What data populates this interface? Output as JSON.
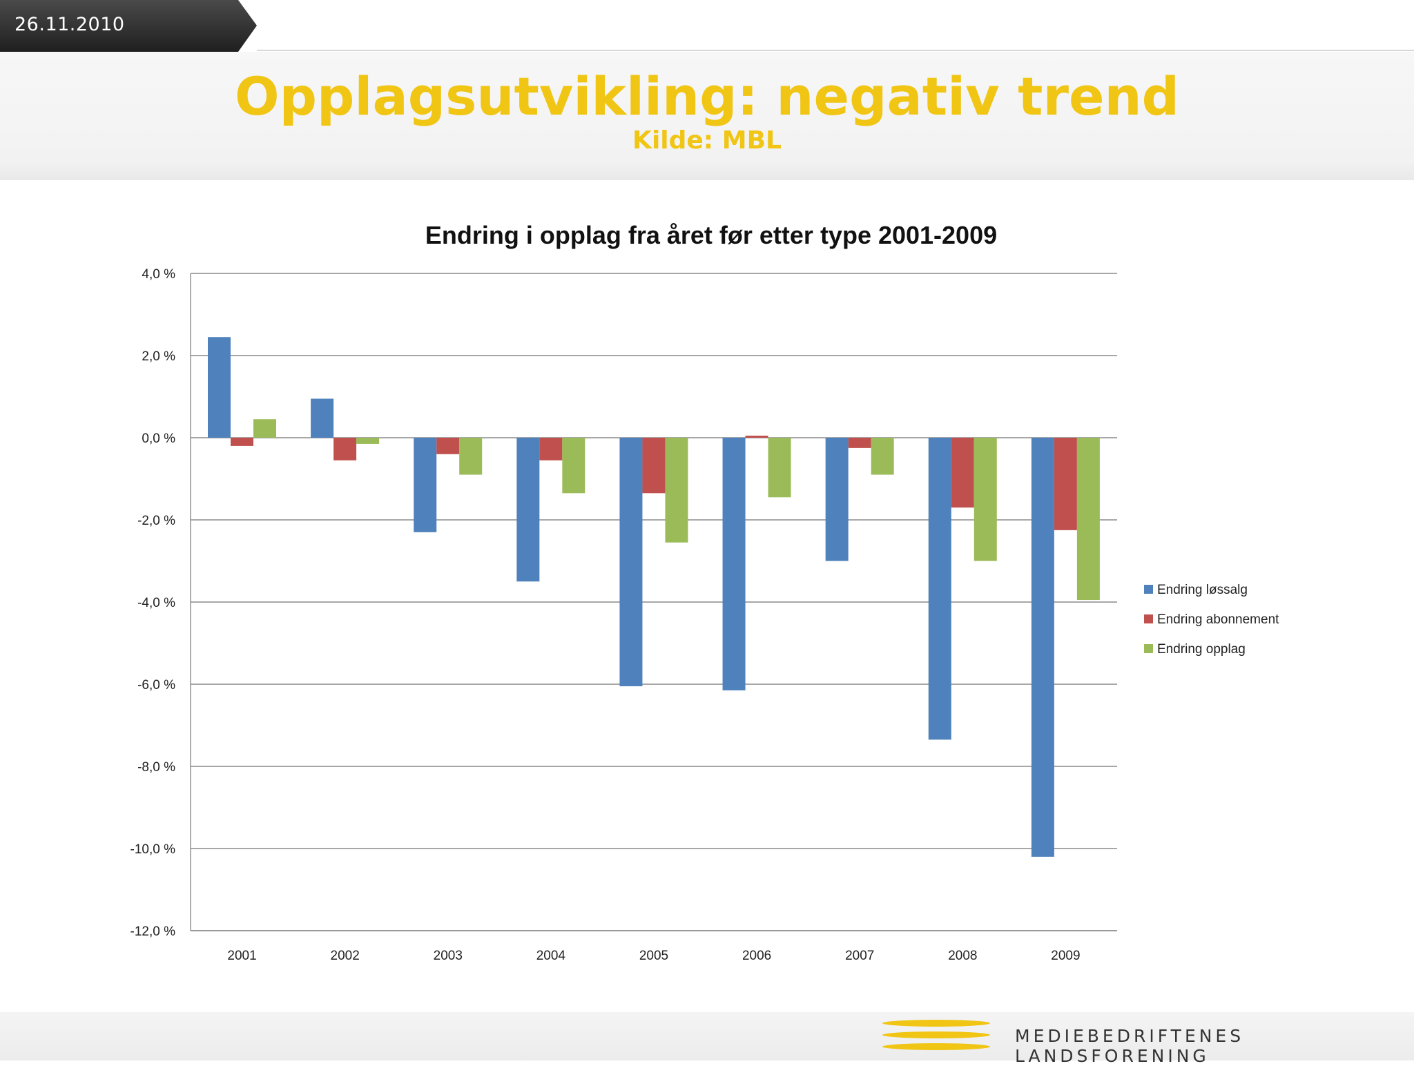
{
  "header": {
    "date": "26.11.2010",
    "title": "Opplagsutvikling: negativ trend",
    "subtitle": "Kilde: MBL"
  },
  "footer": {
    "org_name": "MEDIEBEDRIFTENES LANDSFORENING"
  },
  "chart_data": {
    "type": "bar",
    "title": "Endring i opplag fra året før etter type 2001-2009",
    "categories": [
      "2001",
      "2002",
      "2003",
      "2004",
      "2005",
      "2006",
      "2007",
      "2008",
      "2009"
    ],
    "series": [
      {
        "name": "Endring løssalg",
        "color": "#4f81bd",
        "values": [
          2.45,
          0.95,
          -2.3,
          -3.5,
          -6.05,
          -6.15,
          -3.0,
          -7.35,
          -10.2
        ]
      },
      {
        "name": "Endring abonnement",
        "color": "#c0504d",
        "values": [
          -0.2,
          -0.55,
          -0.4,
          -0.55,
          -1.35,
          0.05,
          -0.25,
          -1.7,
          -2.25
        ]
      },
      {
        "name": "Endring opplag",
        "color": "#9bbb59",
        "values": [
          0.45,
          -0.15,
          -0.9,
          -1.35,
          -2.55,
          -1.45,
          -0.9,
          -3.0,
          -3.95
        ]
      }
    ],
    "ylim": [
      -12,
      4
    ],
    "yticks": [
      4,
      2,
      0,
      -2,
      -4,
      -6,
      -8,
      -10,
      -12
    ],
    "ytick_labels": [
      "4,0 %",
      "2,0 %",
      "0,0 %",
      "-2,0 %",
      "-4,0 %",
      "-6,0 %",
      "-8,0 %",
      "-10,0 %",
      "-12,0 %"
    ],
    "grid": true,
    "legend_position": "right"
  }
}
